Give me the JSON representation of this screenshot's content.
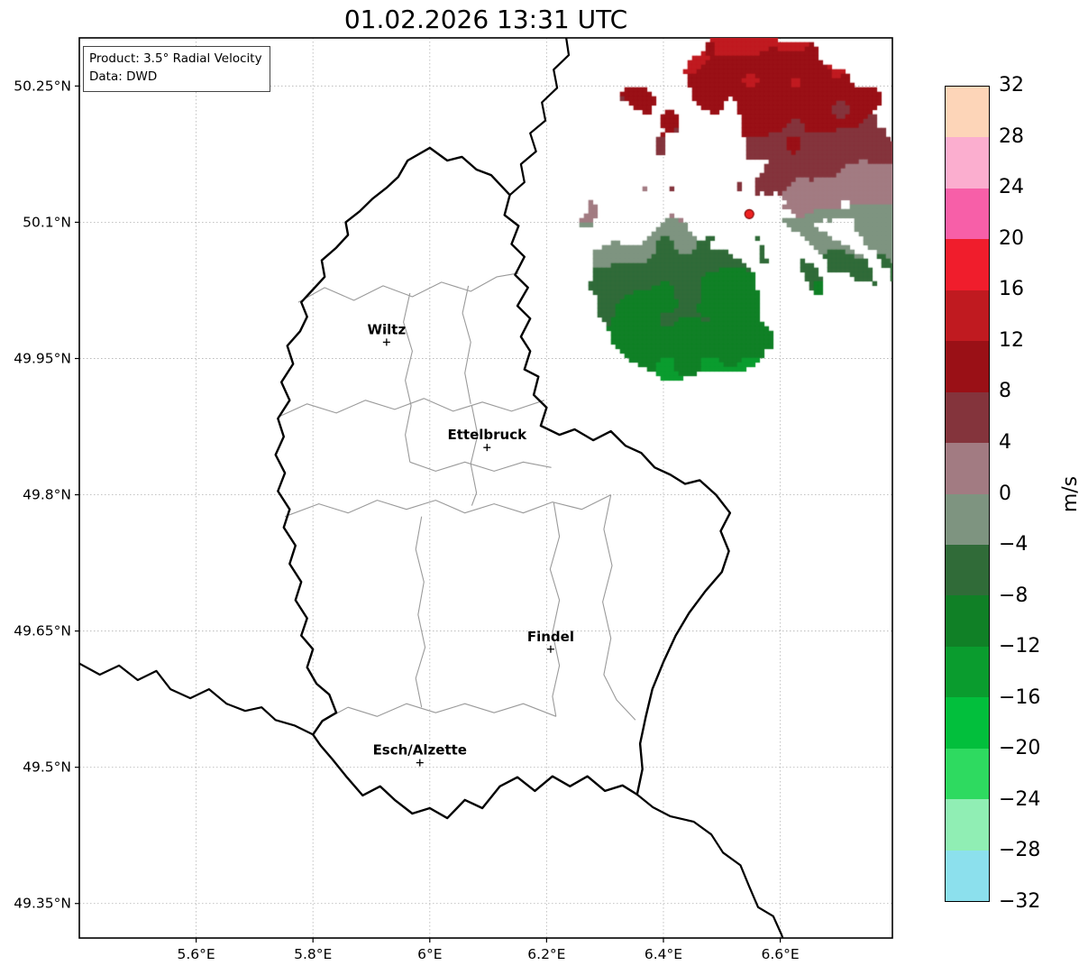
{
  "chart_data": {
    "type": "heatmap",
    "title": "01.02.2026 13:31 UTC",
    "annotations": {
      "product": "Product: 3.5° Radial Velocity",
      "source": "Data: DWD"
    },
    "xlabel": "",
    "ylabel": "",
    "xlim": [
      5.4,
      6.792
    ],
    "ylim": [
      49.312,
      50.303
    ],
    "grid": true,
    "x_ticks": [
      {
        "value": 5.6,
        "label": "5.6°E"
      },
      {
        "value": 5.8,
        "label": "5.8°E"
      },
      {
        "value": 6.0,
        "label": "6°E"
      },
      {
        "value": 6.2,
        "label": "6.2°E"
      },
      {
        "value": 6.4,
        "label": "6.4°E"
      },
      {
        "value": 6.6,
        "label": "6.6°E"
      }
    ],
    "y_ticks": [
      {
        "value": 50.25,
        "label": "50.25°N"
      },
      {
        "value": 50.1,
        "label": "50.1°N"
      },
      {
        "value": 49.95,
        "label": "49.95°N"
      },
      {
        "value": 49.8,
        "label": "49.8°N"
      },
      {
        "value": 49.65,
        "label": "49.65°N"
      },
      {
        "value": 49.5,
        "label": "49.5°N"
      },
      {
        "value": 49.35,
        "label": "49.35°N"
      }
    ],
    "colorbar": {
      "label": "m/s",
      "tick_labels": [
        "32",
        "28",
        "24",
        "20",
        "16",
        "12",
        "8",
        "4",
        "0",
        "−4",
        "−8",
        "−12",
        "−16",
        "−20",
        "−24",
        "−28",
        "−32"
      ],
      "segments": [
        {
          "from": 28,
          "to": 32,
          "color": "#fdd5b8"
        },
        {
          "from": 24,
          "to": 28,
          "color": "#fbaecf"
        },
        {
          "from": 20,
          "to": 24,
          "color": "#f75fa8"
        },
        {
          "from": 16,
          "to": 20,
          "color": "#f01d2c"
        },
        {
          "from": 12,
          "to": 16,
          "color": "#c01a20"
        },
        {
          "from": 8,
          "to": 12,
          "color": "#9a1016"
        },
        {
          "from": 4,
          "to": 8,
          "color": "#84343c"
        },
        {
          "from": 0,
          "to": 4,
          "color": "#a27b82"
        },
        {
          "from": -4,
          "to": 0,
          "color": "#7e9480"
        },
        {
          "from": -8,
          "to": -4,
          "color": "#306b38"
        },
        {
          "from": -12,
          "to": -8,
          "color": "#108026"
        },
        {
          "from": -16,
          "to": -12,
          "color": "#0a9c2e"
        },
        {
          "from": -20,
          "to": -16,
          "color": "#02bf3c"
        },
        {
          "from": -24,
          "to": -20,
          "color": "#2eda60"
        },
        {
          "from": -28,
          "to": -24,
          "color": "#90eeb4"
        },
        {
          "from": -32,
          "to": -28,
          "color": "#8ce0ed"
        }
      ]
    },
    "cities": [
      {
        "name": "Wiltz",
        "lon": 5.926,
        "lat": 49.968
      },
      {
        "name": "Ettelbruck",
        "lon": 6.098,
        "lat": 49.852
      },
      {
        "name": "Findel",
        "lon": 6.207,
        "lat": 49.63
      },
      {
        "name": "Esch/Alzette",
        "lon": 5.983,
        "lat": 49.505
      }
    ],
    "radar": {
      "site": {
        "lon": 6.547,
        "lat": 50.109
      },
      "marker_color": "#ee2222",
      "range_lat_deg": 0.183,
      "max_radial_velocity_ms": 13,
      "velocity_pattern": "positive (red, away from radar) north of site; negative (green, toward radar) south of site; near-zero (grey) east-west through site",
      "seed": 11,
      "coverage_spots": [
        {
          "az": 0,
          "r": 0.95,
          "az_width": 24,
          "r_width": 0.22,
          "boost": 0.42
        },
        {
          "az": 38,
          "r": 0.72,
          "az_width": 20,
          "r_width": 0.26,
          "boost": 0.32
        },
        {
          "az": 78,
          "r": 0.85,
          "az_width": 14,
          "r_width": 0.2,
          "boost": 0.15
        },
        {
          "az": 102,
          "r": 0.5,
          "az_width": 24,
          "r_width": 0.3,
          "boost": 0.12
        },
        {
          "az": 148,
          "r": 0.85,
          "az_width": 18,
          "r_width": 0.28,
          "boost": -0.2
        },
        {
          "az": 196,
          "r": 0.52,
          "az_width": 26,
          "r_width": 0.34,
          "boost": 0.24
        },
        {
          "az": 229,
          "r": 0.8,
          "az_width": 19,
          "r_width": 0.26,
          "boost": 0.4
        },
        {
          "az": 206,
          "r": 0.97,
          "az_width": 11,
          "r_width": 0.14,
          "boost": 0.18
        },
        {
          "az": 297,
          "r": 0.62,
          "az_width": 32,
          "r_width": 0.34,
          "boost": -0.3
        },
        {
          "az": 268,
          "r": 0.4,
          "az_width": 18,
          "r_width": 0.28,
          "boost": 0.12
        }
      ]
    }
  },
  "map": {
    "colors": {
      "country_border": "#000000",
      "internal_border": "#9a9a9a",
      "grid": "#bbbbbb",
      "background": "#ffffff"
    },
    "country_border": [
      [
        6.0,
        50.182
      ],
      [
        6.03,
        50.168
      ],
      [
        6.055,
        50.172
      ],
      [
        6.08,
        50.158
      ],
      [
        6.105,
        50.152
      ],
      [
        6.137,
        50.13
      ],
      [
        6.128,
        50.108
      ],
      [
        6.152,
        50.096
      ],
      [
        6.14,
        50.076
      ],
      [
        6.162,
        50.062
      ],
      [
        6.146,
        50.042
      ],
      [
        6.168,
        50.028
      ],
      [
        6.15,
        50.008
      ],
      [
        6.172,
        49.994
      ],
      [
        6.156,
        49.974
      ],
      [
        6.172,
        49.958
      ],
      [
        6.162,
        49.938
      ],
      [
        6.186,
        49.93
      ],
      [
        6.178,
        49.91
      ],
      [
        6.2,
        49.896
      ],
      [
        6.19,
        49.876
      ],
      [
        6.222,
        49.866
      ],
      [
        6.248,
        49.872
      ],
      [
        6.28,
        49.86
      ],
      [
        6.31,
        49.87
      ],
      [
        6.335,
        49.854
      ],
      [
        6.362,
        49.846
      ],
      [
        6.385,
        49.83
      ],
      [
        6.412,
        49.822
      ],
      [
        6.437,
        49.812
      ],
      [
        6.462,
        49.816
      ],
      [
        6.49,
        49.8
      ],
      [
        6.514,
        49.78
      ],
      [
        6.498,
        49.76
      ],
      [
        6.512,
        49.738
      ],
      [
        6.5,
        49.715
      ],
      [
        6.472,
        49.694
      ],
      [
        6.444,
        49.67
      ],
      [
        6.421,
        49.645
      ],
      [
        6.4,
        49.616
      ],
      [
        6.381,
        49.586
      ],
      [
        6.37,
        49.556
      ],
      [
        6.36,
        49.526
      ],
      [
        6.364,
        49.498
      ],
      [
        6.355,
        49.47
      ],
      [
        6.33,
        49.48
      ],
      [
        6.3,
        49.474
      ],
      [
        6.27,
        49.49
      ],
      [
        6.24,
        49.479
      ],
      [
        6.21,
        49.49
      ],
      [
        6.18,
        49.474
      ],
      [
        6.15,
        49.489
      ],
      [
        6.12,
        49.479
      ],
      [
        6.09,
        49.455
      ],
      [
        6.06,
        49.464
      ],
      [
        6.03,
        49.444
      ],
      [
        6.0,
        49.455
      ],
      [
        5.97,
        49.449
      ],
      [
        5.94,
        49.464
      ],
      [
        5.915,
        49.479
      ],
      [
        5.885,
        49.469
      ],
      [
        5.858,
        49.489
      ],
      [
        5.833,
        49.509
      ],
      [
        5.813,
        49.524
      ],
      [
        5.8,
        49.536
      ],
      [
        5.816,
        49.551
      ],
      [
        5.84,
        49.56
      ],
      [
        5.828,
        49.58
      ],
      [
        5.806,
        49.592
      ],
      [
        5.79,
        49.61
      ],
      [
        5.8,
        49.63
      ],
      [
        5.78,
        49.645
      ],
      [
        5.79,
        49.664
      ],
      [
        5.77,
        49.684
      ],
      [
        5.78,
        49.704
      ],
      [
        5.76,
        49.724
      ],
      [
        5.77,
        49.744
      ],
      [
        5.75,
        49.764
      ],
      [
        5.76,
        49.784
      ],
      [
        5.74,
        49.804
      ],
      [
        5.752,
        49.824
      ],
      [
        5.736,
        49.844
      ],
      [
        5.75,
        49.864
      ],
      [
        5.74,
        49.884
      ],
      [
        5.76,
        49.904
      ],
      [
        5.746,
        49.924
      ],
      [
        5.766,
        49.944
      ],
      [
        5.756,
        49.964
      ],
      [
        5.778,
        49.98
      ],
      [
        5.79,
        49.996
      ],
      [
        5.78,
        50.012
      ],
      [
        5.8,
        50.026
      ],
      [
        5.82,
        50.04
      ],
      [
        5.815,
        50.058
      ],
      [
        5.84,
        50.072
      ],
      [
        5.86,
        50.086
      ],
      [
        5.856,
        50.1
      ],
      [
        5.88,
        50.112
      ],
      [
        5.902,
        50.126
      ],
      [
        5.926,
        50.138
      ],
      [
        5.946,
        50.15
      ],
      [
        5.962,
        50.168
      ],
      [
        6.0,
        50.182
      ]
    ],
    "neighbor_borders": [
      [
        [
          6.137,
          50.13
        ],
        [
          6.162,
          50.144
        ],
        [
          6.156,
          50.164
        ],
        [
          6.182,
          50.178
        ],
        [
          6.172,
          50.198
        ],
        [
          6.198,
          50.212
        ],
        [
          6.192,
          50.232
        ],
        [
          6.218,
          50.248
        ],
        [
          6.212,
          50.268
        ],
        [
          6.238,
          50.284
        ],
        [
          6.232,
          50.31
        ]
      ],
      [
        [
          5.395,
          49.616
        ],
        [
          5.435,
          49.602
        ],
        [
          5.468,
          49.612
        ],
        [
          5.5,
          49.596
        ],
        [
          5.532,
          49.606
        ],
        [
          5.556,
          49.586
        ],
        [
          5.59,
          49.576
        ],
        [
          5.622,
          49.586
        ],
        [
          5.652,
          49.57
        ],
        [
          5.684,
          49.562
        ],
        [
          5.712,
          49.566
        ],
        [
          5.736,
          49.552
        ],
        [
          5.768,
          49.546
        ],
        [
          5.8,
          49.536
        ]
      ],
      [
        [
          6.355,
          49.47
        ],
        [
          6.382,
          49.456
        ],
        [
          6.412,
          49.446
        ],
        [
          6.452,
          49.44
        ],
        [
          6.482,
          49.426
        ],
        [
          6.502,
          49.406
        ],
        [
          6.532,
          49.392
        ],
        [
          6.546,
          49.37
        ],
        [
          6.562,
          49.346
        ],
        [
          6.588,
          49.336
        ],
        [
          6.602,
          49.316
        ],
        [
          6.612,
          49.298
        ]
      ]
    ],
    "internal_borders": [
      [
        [
          5.775,
          50.012
        ],
        [
          5.82,
          50.028
        ],
        [
          5.87,
          50.014
        ],
        [
          5.92,
          50.03
        ],
        [
          5.97,
          50.018
        ],
        [
          6.02,
          50.034
        ],
        [
          6.07,
          50.024
        ],
        [
          6.115,
          50.04
        ],
        [
          6.152,
          50.044
        ]
      ],
      [
        [
          5.742,
          49.886
        ],
        [
          5.79,
          49.9
        ],
        [
          5.84,
          49.89
        ],
        [
          5.89,
          49.904
        ],
        [
          5.94,
          49.894
        ],
        [
          5.99,
          49.906
        ],
        [
          6.04,
          49.892
        ],
        [
          6.09,
          49.902
        ],
        [
          6.14,
          49.892
        ],
        [
          6.196,
          49.904
        ]
      ],
      [
        [
          5.966,
          50.022
        ],
        [
          5.955,
          49.99
        ],
        [
          5.97,
          49.958
        ],
        [
          5.958,
          49.926
        ],
        [
          5.968,
          49.898
        ],
        [
          5.958,
          49.866
        ],
        [
          5.966,
          49.836
        ]
      ],
      [
        [
          6.066,
          50.03
        ],
        [
          6.056,
          50.0
        ],
        [
          6.07,
          49.968
        ],
        [
          6.06,
          49.934
        ],
        [
          6.07,
          49.9
        ]
      ],
      [
        [
          5.966,
          49.836
        ],
        [
          6.01,
          49.826
        ],
        [
          6.06,
          49.836
        ],
        [
          6.11,
          49.826
        ],
        [
          6.16,
          49.836
        ],
        [
          6.208,
          49.83
        ]
      ],
      [
        [
          6.072,
          49.898
        ],
        [
          6.082,
          49.866
        ],
        [
          6.07,
          49.834
        ],
        [
          6.08,
          49.802
        ],
        [
          6.072,
          49.788
        ]
      ],
      [
        [
          5.752,
          49.776
        ],
        [
          5.81,
          49.79
        ],
        [
          5.86,
          49.78
        ],
        [
          5.91,
          49.794
        ],
        [
          5.96,
          49.784
        ],
        [
          6.01,
          49.794
        ],
        [
          6.06,
          49.78
        ],
        [
          6.11,
          49.79
        ],
        [
          6.16,
          49.78
        ],
        [
          6.21,
          49.792
        ],
        [
          6.26,
          49.784
        ],
        [
          6.31,
          49.8
        ]
      ],
      [
        [
          6.31,
          49.8
        ],
        [
          6.298,
          49.762
        ],
        [
          6.312,
          49.722
        ],
        [
          6.296,
          49.682
        ],
        [
          6.31,
          49.642
        ],
        [
          6.298,
          49.602
        ],
        [
          6.32,
          49.574
        ],
        [
          6.352,
          49.552
        ]
      ],
      [
        [
          5.986,
          49.776
        ],
        [
          5.976,
          49.74
        ],
        [
          5.99,
          49.704
        ],
        [
          5.98,
          49.668
        ],
        [
          5.992,
          49.632
        ],
        [
          5.976,
          49.598
        ],
        [
          5.986,
          49.566
        ]
      ],
      [
        [
          6.212,
          49.792
        ],
        [
          6.222,
          49.754
        ],
        [
          6.206,
          49.718
        ],
        [
          6.222,
          49.684
        ],
        [
          6.21,
          49.648
        ],
        [
          6.222,
          49.612
        ],
        [
          6.21,
          49.578
        ],
        [
          6.216,
          49.556
        ]
      ],
      [
        [
          5.816,
          49.551
        ],
        [
          5.86,
          49.566
        ],
        [
          5.91,
          49.556
        ],
        [
          5.96,
          49.57
        ],
        [
          6.01,
          49.56
        ],
        [
          6.06,
          49.57
        ],
        [
          6.11,
          49.56
        ],
        [
          6.16,
          49.57
        ],
        [
          6.216,
          49.556
        ]
      ]
    ]
  }
}
